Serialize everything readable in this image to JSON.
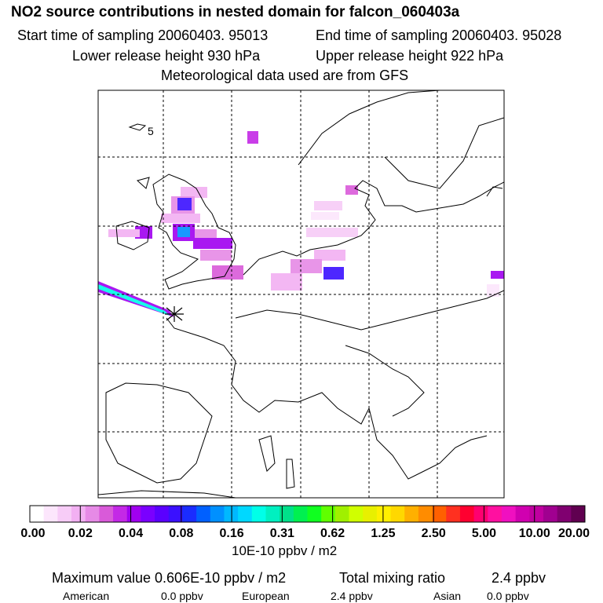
{
  "title": "NO2 source contributions in nested domain for falcon_060403a",
  "header": {
    "start_time": "Start time of sampling 20060403. 95013",
    "end_time": "End time of sampling 20060403. 95028",
    "lower_height": "Lower release height  930 hPa",
    "upper_height": "Upper release height  922 hPa",
    "met_data": "Meteorological data used are from GFS"
  },
  "map": {
    "marker_label": "5",
    "colors": {
      "background": "#ffffff",
      "coast": "#000000",
      "grid": "#000000"
    }
  },
  "colorbar": {
    "tick_labels": [
      "0.00",
      "0.02",
      "0.04",
      "0.08",
      "0.16",
      "0.31",
      "0.62",
      "1.25",
      "2.50",
      "5.00",
      "10.00",
      "20.00"
    ],
    "colors": [
      "#ffffff",
      "#fce6fc",
      "#f7ccf7",
      "#f2b0f2",
      "#e68ae6",
      "#d95ad9",
      "#c429e6",
      "#a000f0",
      "#7a00ff",
      "#5a00ff",
      "#3a10ff",
      "#1a2cff",
      "#0060ff",
      "#0090ff",
      "#00b8ff",
      "#00d8ff",
      "#00ffe8",
      "#00f0c0",
      "#00e08a",
      "#00f050",
      "#10ff20",
      "#60ff00",
      "#a0f000",
      "#d0ff00",
      "#e8f000",
      "#fff000",
      "#ffd800",
      "#ffb000",
      "#ff8c00",
      "#ff6000",
      "#ff3020",
      "#ff0030",
      "#ff0070",
      "#ff10a0",
      "#f010c0",
      "#d000b0",
      "#c000a0",
      "#a00090",
      "#800070",
      "#600050"
    ],
    "unit": "10E-10 ppbv / m2"
  },
  "stats": {
    "max_value": "Maximum value  0.606E-10 ppbv / m2",
    "total_label": "Total mixing ratio",
    "total_value": "2.4 ppbv",
    "regions": [
      {
        "name": "American",
        "value": "0.0 ppbv"
      },
      {
        "name": "European",
        "value": "2.4 ppbv"
      },
      {
        "name": "Asian",
        "value": "0.0 ppbv"
      }
    ]
  }
}
